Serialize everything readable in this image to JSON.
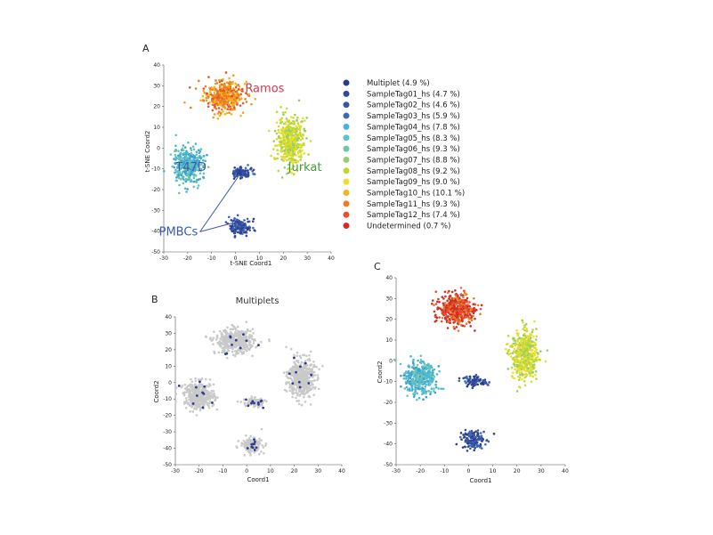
{
  "chart_data": [
    {
      "panel": "A",
      "type": "scatter",
      "xlabel": "t-SNE Coord1",
      "ylabel": "t-SNE Coord2",
      "xlim": [
        -30,
        40
      ],
      "ylim": [
        -50,
        40
      ],
      "xticks": [
        -30,
        -20,
        -10,
        0,
        10,
        20,
        30,
        40
      ],
      "yticks": [
        40,
        30,
        20,
        10,
        0,
        -10,
        -20,
        -30,
        -40,
        -50
      ],
      "clusters": [
        {
          "label": "Ramos",
          "center": [
            -5,
            25
          ],
          "spread": [
            9,
            8
          ],
          "palette": "orange",
          "label_color": "#d5384a",
          "label_pos": [
            4,
            27
          ]
        },
        {
          "label": "T47D",
          "center": [
            -20,
            -8
          ],
          "spread": [
            7,
            9
          ],
          "palette": "cyan",
          "label_color": "#3a5aa8",
          "label_pos": [
            -25,
            -11
          ]
        },
        {
          "label": "Jurkat",
          "center": [
            23,
            3
          ],
          "spread": [
            6,
            13
          ],
          "palette": "yellow",
          "label_color": "#3f9a3c",
          "label_pos": [
            22,
            -11
          ]
        },
        {
          "label": "PMBCs",
          "center": [
            3,
            -12
          ],
          "spread": [
            5,
            3
          ],
          "palette": "blue",
          "label_color": "#3a5aa8",
          "label_pos": [
            -32,
            -42
          ]
        },
        {
          "label": "",
          "center": [
            2,
            -38
          ],
          "spread": [
            5,
            5
          ],
          "palette": "blue"
        }
      ],
      "legend": [
        {
          "name": "Multiplet (4.9 %)",
          "color": "#2b3c8e"
        },
        {
          "name": "SampleTag01_hs (4.7 %)",
          "color": "#33489b"
        },
        {
          "name": "SampleTag02_hs (4.6 %)",
          "color": "#3956a6"
        },
        {
          "name": "SampleTag03_hs (5.9 %)",
          "color": "#3b6ab6"
        },
        {
          "name": "SampleTag04_hs (7.8 %)",
          "color": "#45b3dd"
        },
        {
          "name": "SampleTag05_hs (8.3 %)",
          "color": "#5dc1ca"
        },
        {
          "name": "SampleTag06_hs (9.3 %)",
          "color": "#72c5a6"
        },
        {
          "name": "SampleTag07_hs (8.8 %)",
          "color": "#97cc6f"
        },
        {
          "name": "SampleTag08_hs (9.2 %)",
          "color": "#c0d631"
        },
        {
          "name": "SampleTag09_hs (9.0 %)",
          "color": "#eae12b"
        },
        {
          "name": "SampleTag10_hs (10.1 %)",
          "color": "#f4b41c"
        },
        {
          "name": "SampleTag11_hs (9.3 %)",
          "color": "#ee7a23"
        },
        {
          "name": "SampleTag12_hs (7.4 %)",
          "color": "#e5522a"
        },
        {
          "name": "Undetermined (0.7 %)",
          "color": "#d92b26"
        }
      ]
    },
    {
      "panel": "B",
      "type": "scatter",
      "title": "Multiplets",
      "xlabel": "Coord1",
      "ylabel": "Coord2",
      "xlim": [
        -30,
        40
      ],
      "ylim": [
        -50,
        40
      ],
      "xticks": [
        -30,
        -20,
        -10,
        0,
        10,
        20,
        30,
        40
      ],
      "yticks": [
        40,
        30,
        20,
        10,
        0,
        -10,
        -20,
        -30,
        -40,
        -50
      ],
      "series": [
        {
          "name": "",
          "color": "#c9c9c9"
        },
        {
          "name": "",
          "color": "#2b3c8e"
        }
      ]
    },
    {
      "panel": "C",
      "type": "scatter",
      "xlabel": "Coord1",
      "ylabel": "Coord2",
      "xlim": [
        -30,
        40
      ],
      "ylim": [
        -50,
        40
      ],
      "xticks": [
        -30,
        -20,
        -10,
        0,
        10,
        20,
        30,
        40
      ],
      "yticks": [
        40,
        30,
        20,
        10,
        0,
        -10,
        -20,
        -30,
        -40,
        -50
      ],
      "clusters": [
        {
          "center": [
            -5,
            25
          ],
          "spread": [
            9,
            8
          ],
          "palette": "red"
        },
        {
          "center": [
            -20,
            -8
          ],
          "spread": [
            7,
            9
          ],
          "palette": "cyan"
        },
        {
          "center": [
            23,
            3
          ],
          "spread": [
            6,
            13
          ],
          "palette": "yellow"
        },
        {
          "center": [
            3,
            -10
          ],
          "spread": [
            5,
            3
          ],
          "palette": "blue"
        },
        {
          "center": [
            2,
            -38
          ],
          "spread": [
            5,
            5
          ],
          "palette": "blue"
        }
      ]
    }
  ],
  "palettes": {
    "orange": [
      "#ee7a23",
      "#f4b41c",
      "#e5522a",
      "#f09a25"
    ],
    "cyan": [
      "#45b3dd",
      "#5dc1ca",
      "#72c5a6",
      "#3b9fd0"
    ],
    "yellow": [
      "#c0d631",
      "#eae12b",
      "#97cc6f",
      "#d8dc2e"
    ],
    "blue": [
      "#2b3c8e",
      "#33489b",
      "#3956a6",
      "#3b6ab6"
    ],
    "red": [
      "#d92b26",
      "#e5522a",
      "#c9302c",
      "#ee7a23"
    ]
  }
}
